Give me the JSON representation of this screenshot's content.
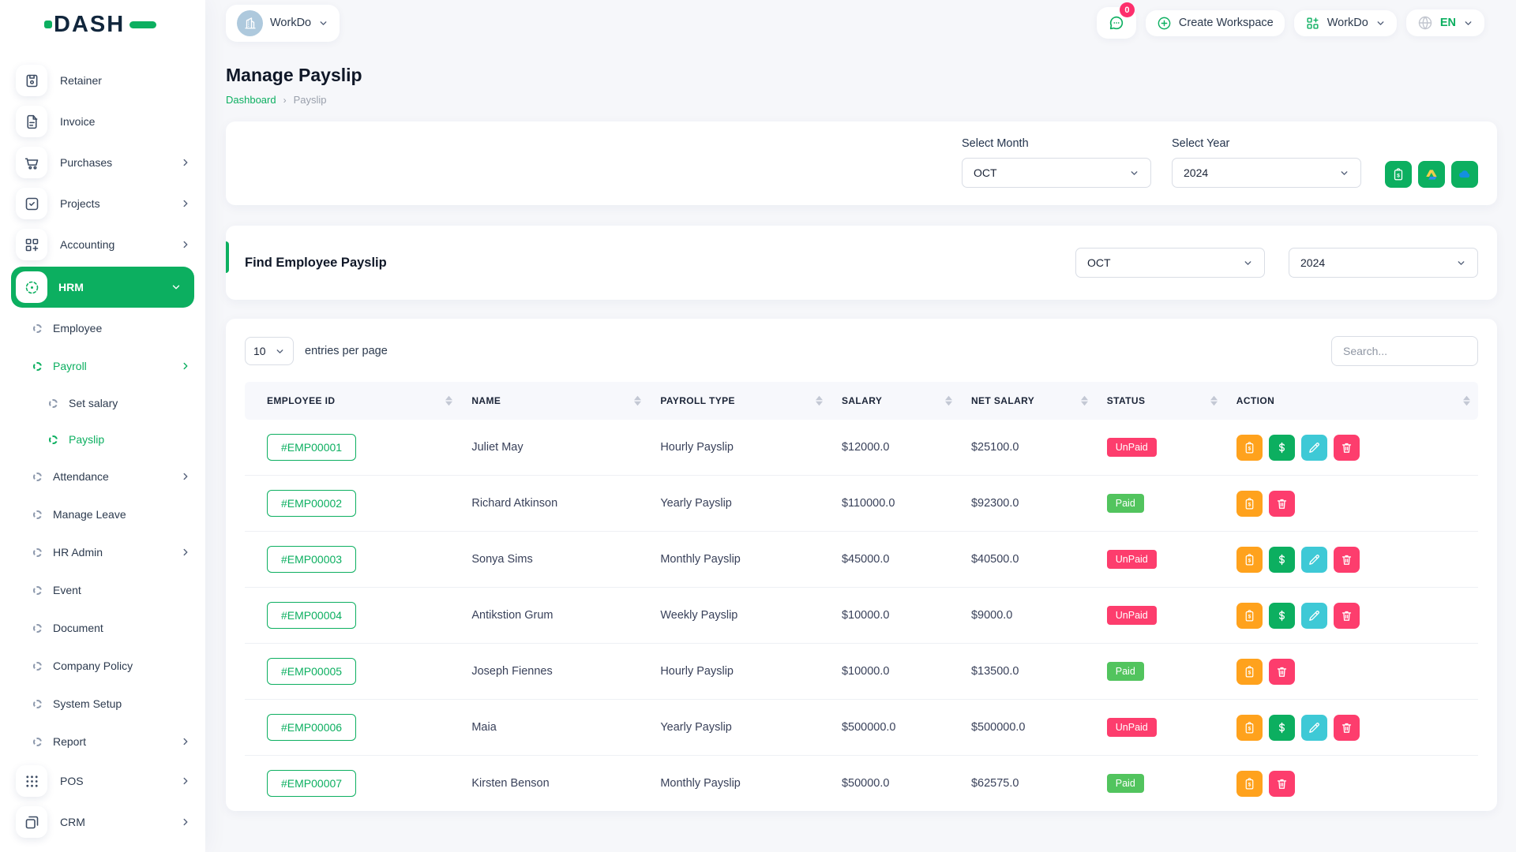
{
  "brand": {
    "logo": "DASH"
  },
  "topbar": {
    "workspace": {
      "label": "WorkDo"
    },
    "messages_badge": "0",
    "create_workspace_label": "Create Workspace",
    "app_menu_label": "WorkDo",
    "language_label": "EN"
  },
  "sidebar": {
    "items": [
      {
        "label": "Retainer",
        "icon": "retainer",
        "type": "top"
      },
      {
        "label": "Invoice",
        "icon": "invoice",
        "type": "top"
      },
      {
        "label": "Purchases",
        "icon": "purchases",
        "type": "top",
        "chevron": "right"
      },
      {
        "label": "Projects",
        "icon": "projects",
        "type": "top",
        "chevron": "right"
      },
      {
        "label": "Accounting",
        "icon": "accounting",
        "type": "top",
        "chevron": "right"
      },
      {
        "label": "HRM",
        "icon": "hrm",
        "type": "top",
        "active": true,
        "chevron": "down"
      },
      {
        "label": "Employee",
        "type": "sub1"
      },
      {
        "label": "Payroll",
        "type": "sub1",
        "green": true,
        "chevron": "right"
      },
      {
        "label": "Set salary",
        "type": "sub2"
      },
      {
        "label": "Payslip",
        "type": "sub2",
        "green": true
      },
      {
        "label": "Attendance",
        "type": "sub1",
        "chevron": "right"
      },
      {
        "label": "Manage Leave",
        "type": "sub1"
      },
      {
        "label": "HR Admin",
        "type": "sub1",
        "chevron": "right"
      },
      {
        "label": "Event",
        "type": "sub1"
      },
      {
        "label": "Document",
        "type": "sub1"
      },
      {
        "label": "Company Policy",
        "type": "sub1"
      },
      {
        "label": "System Setup",
        "type": "sub1"
      },
      {
        "label": "Report",
        "type": "sub1",
        "chevron": "right"
      },
      {
        "label": "POS",
        "icon": "pos",
        "type": "top",
        "chevron": "right"
      },
      {
        "label": "CRM",
        "icon": "crm",
        "type": "top",
        "chevron": "right"
      }
    ]
  },
  "page": {
    "title": "Manage Payslip",
    "breadcrumb_home": "Dashboard",
    "breadcrumb_current": "Payslip"
  },
  "filter_card": {
    "month_label": "Select Month",
    "month_value": "OCT",
    "year_label": "Select Year",
    "year_value": "2024",
    "buttons": [
      "bulk-payslip",
      "google-drive",
      "onedrive"
    ]
  },
  "find_card": {
    "title": "Find Employee Payslip",
    "month_value": "OCT",
    "year_value": "2024"
  },
  "table": {
    "page_size": "10",
    "entries_label": "entries per page",
    "search_placeholder": "Search...",
    "columns": [
      "EMPLOYEE ID",
      "NAME",
      "PAYROLL TYPE",
      "SALARY",
      "NET SALARY",
      "STATUS",
      "ACTION"
    ],
    "rows": [
      {
        "id": "#EMP00001",
        "name": "Juliet May",
        "payroll_type": "Hourly Payslip",
        "salary": "$12000.0",
        "net_salary": "$25100.0",
        "status": "UnPaid",
        "actions": [
          "payslip",
          "payment",
          "edit",
          "delete"
        ]
      },
      {
        "id": "#EMP00002",
        "name": "Richard Atkinson",
        "payroll_type": "Yearly Payslip",
        "salary": "$110000.0",
        "net_salary": "$92300.0",
        "status": "Paid",
        "actions": [
          "payslip",
          "delete"
        ]
      },
      {
        "id": "#EMP00003",
        "name": "Sonya Sims",
        "payroll_type": "Monthly Payslip",
        "salary": "$45000.0",
        "net_salary": "$40500.0",
        "status": "UnPaid",
        "actions": [
          "payslip",
          "payment",
          "edit",
          "delete"
        ]
      },
      {
        "id": "#EMP00004",
        "name": "Antikstion Grum",
        "payroll_type": "Weekly Payslip",
        "salary": "$10000.0",
        "net_salary": "$9000.0",
        "status": "UnPaid",
        "actions": [
          "payslip",
          "payment",
          "edit",
          "delete"
        ]
      },
      {
        "id": "#EMP00005",
        "name": "Joseph Fiennes",
        "payroll_type": "Hourly Payslip",
        "salary": "$10000.0",
        "net_salary": "$13500.0",
        "status": "Paid",
        "actions": [
          "payslip",
          "delete"
        ]
      },
      {
        "id": "#EMP00006",
        "name": "Maia",
        "payroll_type": "Yearly Payslip",
        "salary": "$500000.0",
        "net_salary": "$500000.0",
        "status": "UnPaid",
        "actions": [
          "payslip",
          "payment",
          "edit",
          "delete"
        ]
      },
      {
        "id": "#EMP00007",
        "name": "Kirsten Benson",
        "payroll_type": "Monthly Payslip",
        "salary": "$50000.0",
        "net_salary": "$62575.0",
        "status": "Paid",
        "actions": [
          "payslip",
          "delete"
        ]
      }
    ]
  },
  "colors": {
    "primary": "#0caf60",
    "unpaid": "#fd3d6d",
    "paid": "#52c45e",
    "action_payslip": "#ffa21d",
    "action_payment": "#0caf60",
    "action_edit": "#3ec9d6",
    "action_delete": "#fd3d6d"
  }
}
